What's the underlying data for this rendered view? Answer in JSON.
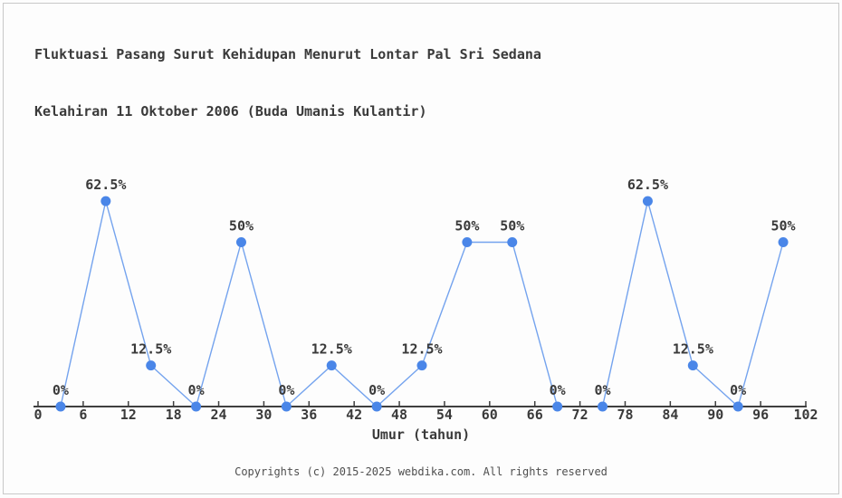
{
  "title": {
    "line1": "Fluktuasi Pasang Surut Kehidupan Menurut Lontar Pal Sri Sedana",
    "line2": "Kelahiran 11 Oktober 2006 (Buda Umanis Kulantir)"
  },
  "footer": {
    "copyright": "Copyrights (c) 2015-2025 webdika.com. All rights reserved"
  },
  "chart_data": {
    "type": "line",
    "title": "Fluktuasi Pasang Surut Kehidupan Menurut Lontar Pal Sri Sedana Kelahiran 11 Oktober 2006 (Buda Umanis Kulantir)",
    "xlabel": "Umur (tahun)",
    "ylabel": "",
    "x": [
      3,
      9,
      15,
      21,
      27,
      33,
      39,
      45,
      51,
      57,
      63,
      69,
      75,
      81,
      87,
      93,
      99
    ],
    "values": [
      0,
      62.5,
      12.5,
      0,
      50,
      0,
      12.5,
      0,
      12.5,
      50,
      50,
      0,
      0,
      62.5,
      12.5,
      0,
      50
    ],
    "point_labels": [
      "0%",
      "62.5%",
      "12.5%",
      "0%",
      "50%",
      "0%",
      "12.5%",
      "0%",
      "12.5%",
      "50%",
      "50%",
      "0%",
      "0%",
      "62.5%",
      "12.5%",
      "0%",
      "50%"
    ],
    "x_ticks": [
      0,
      6,
      12,
      18,
      24,
      30,
      36,
      42,
      48,
      54,
      60,
      66,
      72,
      78,
      84,
      90,
      96,
      102
    ],
    "xlim": [
      0,
      102
    ],
    "ylim": [
      0,
      100
    ],
    "grid": false,
    "legend": false,
    "colors": {
      "marker": "#4a86e8",
      "line": "#74a3ee",
      "axis": "#3f3f3f",
      "text": "#3a3a3a"
    }
  }
}
